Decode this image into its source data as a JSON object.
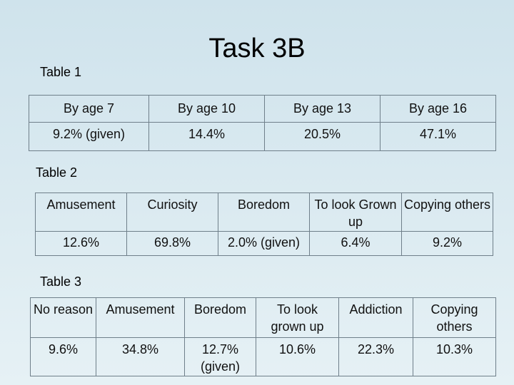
{
  "title": "Task 3B",
  "table1": {
    "caption": "Table 1",
    "headers": [
      "By age 7",
      "By age 10",
      "By age 13",
      "By age 16"
    ],
    "values": [
      "9.2% (given)",
      "14.4%",
      "20.5%",
      "47.1%"
    ]
  },
  "table2": {
    "caption": "Table 2",
    "headers": [
      "Amusement",
      "Curiosity",
      "Boredom",
      "To look Grown up",
      "Copying others"
    ],
    "values": [
      "12.6%",
      "69.8%",
      "2.0% (given)",
      "6.4%",
      "9.2%"
    ]
  },
  "table3": {
    "caption": "Table 3",
    "headers": [
      "No reason",
      "Amusement",
      "Boredom",
      "To look grown up",
      "Addiction",
      "Copying others"
    ],
    "values": [
      "9.6%",
      "34.8%",
      "12.7% (given)",
      "10.6%",
      "22.3%",
      "10.3%"
    ]
  }
}
